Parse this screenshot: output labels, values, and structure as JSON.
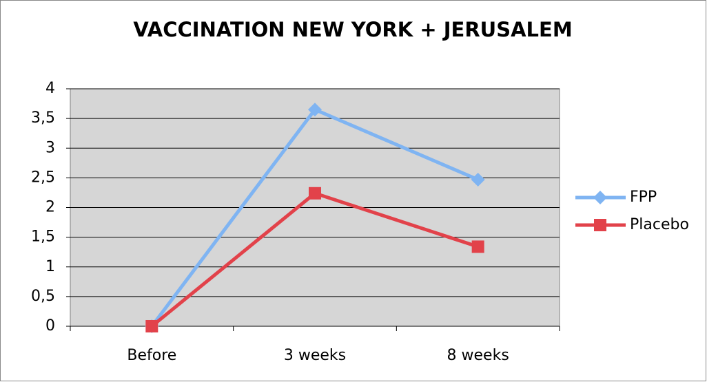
{
  "chart_data": {
    "type": "line",
    "title": "VACCINATION NEW YORK + JERUSALEM",
    "categories": [
      "Before",
      "3 weeks",
      "8 weeks"
    ],
    "series": [
      {
        "name": "FPP",
        "color": "#7fb4f2",
        "marker": "diamond",
        "values": [
          0,
          3.65,
          2.47
        ]
      },
      {
        "name": "Placebo",
        "color": "#e2424a",
        "marker": "square",
        "values": [
          0,
          2.24,
          1.34
        ]
      }
    ],
    "ylim": [
      0,
      4
    ],
    "yticks": [
      0,
      {
        "value": 0.5,
        "label": "0,5"
      },
      1,
      {
        "value": 1.5,
        "label": "1,5"
      },
      2,
      {
        "value": 2.5,
        "label": "2,5"
      },
      3,
      {
        "value": 3.5,
        "label": "3,5"
      },
      4
    ],
    "grid": true,
    "legend": "right"
  }
}
